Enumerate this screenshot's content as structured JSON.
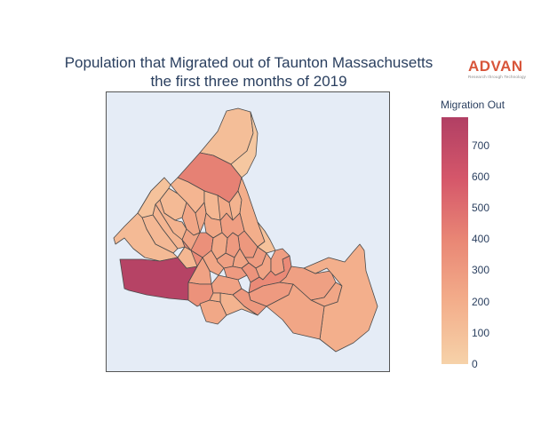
{
  "chart": {
    "title_line1": "Population that Migrated out of Taunton Massachusetts",
    "title_line2": "the first three months of 2019"
  },
  "logo": {
    "name": "ADVAN",
    "tagline": "Research through Technology"
  },
  "legend": {
    "title": "Migration Out",
    "min": 0,
    "max": 790,
    "ticks": [
      "700",
      "600",
      "500",
      "400",
      "300",
      "200",
      "100",
      "0"
    ],
    "tick_values": [
      700,
      600,
      500,
      400,
      300,
      200,
      100,
      0
    ],
    "colorscale": [
      "#f6d2a9",
      "#f3ae8b",
      "#e98775",
      "#d5576a",
      "#b13f64"
    ]
  },
  "colors": {
    "map_background": "#e5ecf6",
    "region_stroke": "#4a4a4a"
  },
  "chart_data": {
    "type": "choropleth",
    "metric": "Migration Out",
    "value_range": [
      0,
      790
    ],
    "regions_approx_values": [
      110,
      420,
      160,
      240,
      130,
      170,
      160,
      140,
      130,
      150,
      230,
      170,
      200,
      350,
      380,
      340,
      280,
      310,
      300,
      270,
      250,
      290,
      240,
      300,
      330,
      250,
      90,
      260,
      760,
      340,
      230,
      260,
      380,
      280,
      300,
      310,
      270,
      240,
      190,
      240,
      170,
      190,
      150,
      230,
      90,
      250,
      220,
      60,
      230
    ]
  }
}
